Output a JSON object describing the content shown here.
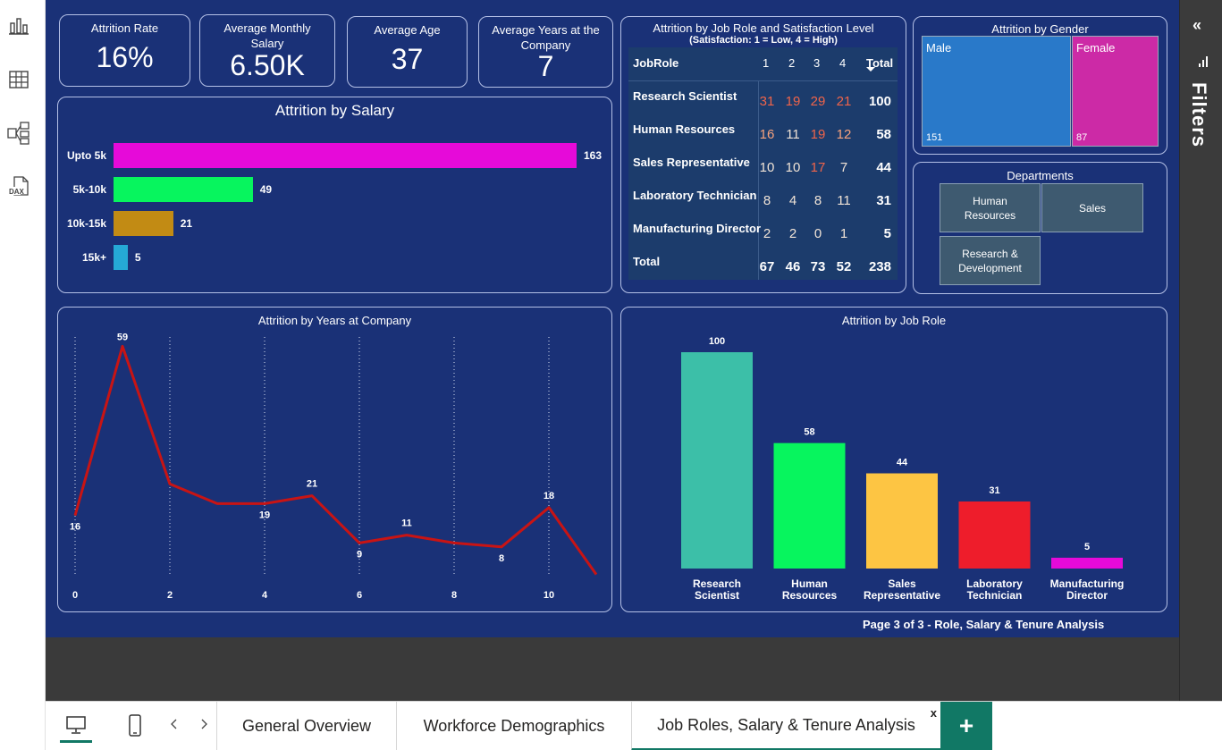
{
  "left_rail": {
    "icons": [
      "report-view-icon",
      "table-view-icon",
      "model-view-icon",
      "dax-query-icon"
    ]
  },
  "kpis": {
    "attrition_rate": {
      "label": "Attrition Rate",
      "value": "16%"
    },
    "avg_monthly_salary": {
      "label": "Average Monthly Salary",
      "value": "6.50K"
    },
    "avg_age": {
      "label": "Average Age",
      "value": "37"
    },
    "avg_years": {
      "label": "Average Years at the Company",
      "value": "7"
    }
  },
  "salary_chart": {
    "title": "Attrition by Salary",
    "colors": [
      "#e60ad9",
      "#07f55e",
      "#c28b14",
      "#25a9d6"
    ]
  },
  "matrix": {
    "title": "Attrition by Job Role and Satisfaction Level",
    "subtitle": "(Satisfaction: 1 = Low,  4 = High)",
    "headers": {
      "role": "JobRole",
      "c1": "1",
      "c2": "2",
      "c3": "3",
      "c4": "4",
      "total": "Total"
    },
    "rows": [
      {
        "role": "Research Scientist",
        "v": [
          "31",
          "19",
          "29",
          "21"
        ],
        "total": "100"
      },
      {
        "role": "Human Resources",
        "v": [
          "16",
          "11",
          "19",
          "12"
        ],
        "total": "58"
      },
      {
        "role": "Sales Representative",
        "v": [
          "10",
          "10",
          "17",
          "7"
        ],
        "total": "44"
      },
      {
        "role": "Laboratory Technician",
        "v": [
          "8",
          "4",
          "8",
          "11"
        ],
        "total": "31"
      },
      {
        "role": "Manufacturing Director",
        "v": [
          "2",
          "2",
          "0",
          "1"
        ],
        "total": "5"
      }
    ],
    "totals": {
      "role": "Total",
      "v": [
        "67",
        "46",
        "73",
        "52"
      ],
      "total": "238"
    }
  },
  "gender": {
    "title": "Attrition by Gender",
    "male": {
      "label": "Male",
      "value": "151",
      "color": "#2979c9"
    },
    "female": {
      "label": "Female",
      "value": "87",
      "color": "#cc2aa6"
    }
  },
  "departments": {
    "title": "Departments",
    "items": [
      "Human Resources",
      "Sales",
      "Research & Development"
    ]
  },
  "years_chart": {
    "title": "Attrition by Years at Company",
    "line_color": "#c81414"
  },
  "jobrole_chart": {
    "title": "Attrition by Job Role",
    "colors": [
      "#3cbfa8",
      "#07f55e",
      "#fdc543",
      "#ee1d2b",
      "#e60ad9"
    ]
  },
  "chart_data": [
    {
      "type": "bar",
      "orientation": "horizontal",
      "title": "Attrition by Salary",
      "categories": [
        "Upto 5k",
        "5k-10k",
        "10k-15k",
        "15k+"
      ],
      "values": [
        163,
        49,
        21,
        5
      ]
    },
    {
      "type": "line",
      "title": "Attrition by Years at Company",
      "x": [
        0,
        1,
        2,
        3,
        4,
        5,
        6,
        7,
        8,
        9,
        10,
        11
      ],
      "values": [
        16,
        59,
        24,
        19,
        19,
        21,
        9,
        11,
        9,
        8,
        18,
        1
      ],
      "data_labels": {
        "0": "16",
        "1": "59",
        "4": "19",
        "5": "21",
        "6": "9",
        "7": "11",
        "9": "8",
        "10": "18"
      },
      "x_ticks": [
        "0",
        "2",
        "4",
        "6",
        "8",
        "10"
      ],
      "grid": "vertical dotted"
    },
    {
      "type": "bar",
      "title": "Attrition by Job Role",
      "categories": [
        "Research Scientist",
        "Human Resources",
        "Sales Representative",
        "Laboratory Technician",
        "Manufacturing Director"
      ],
      "category_lines": [
        [
          "Research",
          "Scientist"
        ],
        [
          "Human",
          "Resources"
        ],
        [
          "Sales",
          "Representative"
        ],
        [
          "Laboratory",
          "Technician"
        ],
        [
          "Manufacturing",
          "Director"
        ]
      ],
      "values": [
        100,
        58,
        44,
        31,
        5
      ]
    }
  ],
  "footer": {
    "page": "Page 3 of 3 - Role, Salary & Tenure Analysis"
  },
  "filters": {
    "label": "Filters"
  },
  "tabs": {
    "items": [
      "General Overview",
      "Workforce Demographics",
      "Job Roles, Salary & Tenure Analysis"
    ],
    "add": "+",
    "close": "x"
  }
}
